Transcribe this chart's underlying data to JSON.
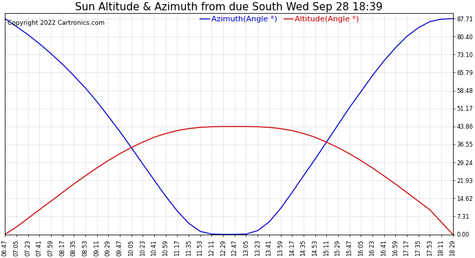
{
  "title": "Sun Altitude & Azimuth from due South Wed Sep 28 18:39",
  "copyright": "Copyright 2022 Cartronics.com",
  "legend_azimuth": "Azimuth(Angle °)",
  "legend_altitude": "Altitude(Angle °)",
  "azimuth_color": "#0000cc",
  "altitude_color": "#cc0000",
  "background_color": "#ffffff",
  "grid_color": "#bbbbbb",
  "yticks": [
    0.0,
    7.31,
    14.62,
    21.93,
    29.24,
    36.55,
    43.86,
    51.17,
    58.48,
    65.79,
    73.1,
    80.4,
    87.71
  ],
  "ylim": [
    0.0,
    90.0
  ],
  "times": [
    "06:47",
    "07:05",
    "07:23",
    "07:41",
    "07:59",
    "08:17",
    "08:35",
    "08:53",
    "09:11",
    "09:29",
    "09:47",
    "10:05",
    "10:23",
    "10:41",
    "10:59",
    "11:17",
    "11:35",
    "11:53",
    "12:11",
    "12:29",
    "12:47",
    "13:05",
    "13:23",
    "13:41",
    "13:59",
    "14:17",
    "14:35",
    "14:53",
    "15:11",
    "15:29",
    "15:47",
    "16:05",
    "16:23",
    "16:41",
    "16:59",
    "17:17",
    "17:35",
    "17:53",
    "18:11",
    "18:29"
  ],
  "azimuth_values": [
    87.71,
    84.5,
    81.2,
    77.5,
    73.5,
    69.2,
    64.5,
    59.5,
    54.0,
    48.0,
    41.8,
    35.3,
    28.6,
    22.0,
    15.5,
    9.5,
    4.5,
    1.2,
    0.1,
    0.0,
    0.0,
    0.1,
    1.5,
    5.0,
    10.5,
    17.0,
    23.8,
    30.5,
    37.5,
    44.5,
    51.5,
    58.0,
    64.5,
    70.5,
    75.8,
    80.5,
    84.0,
    86.5,
    87.5,
    87.71
  ],
  "altitude_values": [
    0.0,
    3.0,
    6.5,
    10.0,
    13.5,
    17.0,
    20.5,
    23.8,
    27.0,
    30.0,
    32.8,
    35.3,
    37.5,
    39.5,
    41.0,
    42.2,
    43.0,
    43.5,
    43.75,
    43.85,
    43.86,
    43.85,
    43.75,
    43.5,
    43.0,
    42.2,
    41.0,
    39.5,
    37.5,
    35.3,
    32.8,
    30.0,
    27.0,
    23.8,
    20.5,
    17.0,
    13.5,
    10.0,
    5.0,
    0.0
  ],
  "title_fontsize": 11,
  "tick_fontsize": 6,
  "legend_fontsize": 8,
  "copyright_fontsize": 6.5
}
